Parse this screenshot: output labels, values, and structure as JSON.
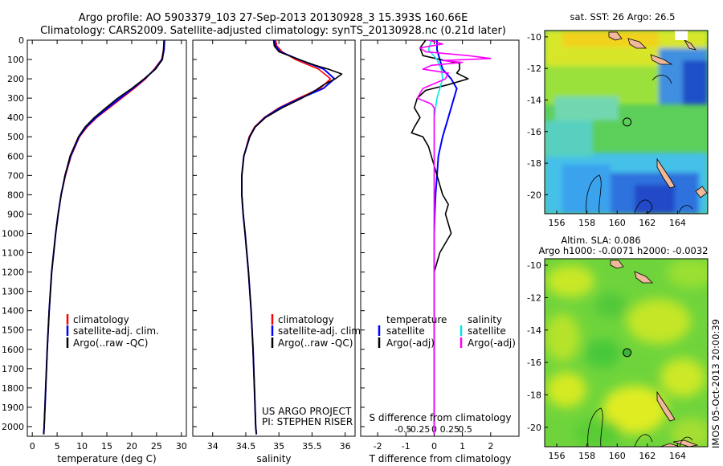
{
  "header": {
    "title_line1": "Argo profile: AO 5903379_103 27-Sep-2013 20130928_3 15.393S 160.66E",
    "title_line2": "Climatology: CARS2009. Satellite-adjusted climatology: synTS_20130928.nc (0.21d later)"
  },
  "stamp": "IMOS 05-Oct-2013 20:00:39",
  "colors": {
    "climatology": "#ff0000",
    "satellite_temp": "#0000ff",
    "argo": "#000000",
    "satellite_sal": "#00e5e5",
    "argo_sal": "#ff00ff",
    "land": "#f0b89a"
  },
  "chart_data": [
    {
      "type": "line",
      "name": "temperature-profile",
      "xlabel": "temperature (deg C)",
      "ylabel": "",
      "xlim": [
        -1,
        31
      ],
      "ylim": [
        2050,
        0
      ],
      "xticks": [
        0,
        5,
        10,
        15,
        20,
        25,
        30
      ],
      "yticks": [
        0,
        100,
        200,
        300,
        400,
        500,
        600,
        700,
        800,
        900,
        1000,
        1100,
        1200,
        1300,
        1400,
        1500,
        1600,
        1700,
        1800,
        1900,
        2000
      ],
      "legend": [
        {
          "label": "climatology",
          "color": "#ff0000"
        },
        {
          "label": "satellite-adj. clim.",
          "color": "#0000ff"
        },
        {
          "label": "Argo(..raw -QC)",
          "color": "#000000"
        }
      ],
      "series": [
        {
          "name": "climatology",
          "color": "#ff0000",
          "depth": [
            0,
            50,
            100,
            150,
            200,
            250,
            300,
            350,
            400,
            450,
            500,
            600,
            700,
            800,
            900,
            1000,
            1200,
            1400,
            1600,
            1800,
            2000,
            2040
          ],
          "values": [
            26.5,
            26.4,
            26.0,
            24.5,
            22.8,
            20.5,
            18.0,
            15.5,
            13.0,
            11.0,
            9.5,
            7.8,
            6.7,
            5.8,
            5.2,
            4.7,
            3.9,
            3.4,
            3.0,
            2.7,
            2.4,
            2.3
          ]
        },
        {
          "name": "satellite-adj. clim.",
          "color": "#0000ff",
          "depth": [
            0,
            50,
            100,
            150,
            200,
            250,
            300,
            350,
            400,
            450,
            500,
            600,
            700,
            800,
            900,
            1000,
            1200,
            1400,
            1600,
            1800,
            2000,
            2040
          ],
          "values": [
            26.6,
            26.5,
            26.1,
            24.7,
            22.6,
            20.2,
            17.7,
            15.2,
            12.8,
            10.8,
            9.4,
            7.7,
            6.6,
            5.8,
            5.2,
            4.7,
            3.9,
            3.4,
            3.0,
            2.7,
            2.4,
            2.3
          ]
        },
        {
          "name": "Argo(..raw -QC)",
          "color": "#000000",
          "depth": [
            0,
            50,
            100,
            150,
            200,
            250,
            300,
            350,
            400,
            450,
            500,
            600,
            700,
            800,
            900,
            1000,
            1200,
            1400,
            1600,
            1800,
            2000,
            2040
          ],
          "values": [
            26.5,
            26.4,
            26.2,
            24.8,
            22.5,
            20.0,
            17.2,
            14.8,
            12.5,
            10.6,
            9.3,
            7.6,
            6.6,
            5.8,
            5.2,
            4.7,
            3.9,
            3.4,
            3.0,
            2.7,
            2.4,
            2.3
          ]
        }
      ]
    },
    {
      "type": "line",
      "name": "salinity-profile",
      "xlabel": "salinity",
      "xlim": [
        33.7,
        36.15
      ],
      "ylim": [
        2050,
        0
      ],
      "xticks": [
        34,
        34.5,
        35,
        35.5,
        36
      ],
      "legend": [
        {
          "label": "climatology",
          "color": "#ff0000"
        },
        {
          "label": "satellite-adj. clim.",
          "color": "#0000ff"
        },
        {
          "label": "Argo(..raw -QC)",
          "color": "#000000"
        }
      ],
      "annotation": [
        "US ARGO PROJECT",
        "PI: STEPHEN RISER"
      ],
      "series": [
        {
          "name": "climatology",
          "color": "#ff0000",
          "depth": [
            0,
            30,
            60,
            100,
            150,
            200,
            250,
            300,
            350,
            400,
            450,
            500,
            600,
            700,
            800,
            900,
            1000,
            1200,
            1400,
            1600,
            1800,
            2000,
            2040
          ],
          "values": [
            34.95,
            34.97,
            35.05,
            35.25,
            35.6,
            35.78,
            35.62,
            35.3,
            35.0,
            34.78,
            34.63,
            34.55,
            34.47,
            34.44,
            34.44,
            34.46,
            34.49,
            34.54,
            34.58,
            34.61,
            34.63,
            34.65,
            34.66
          ]
        },
        {
          "name": "satellite-adj. clim.",
          "color": "#0000ff",
          "depth": [
            0,
            30,
            60,
            100,
            150,
            200,
            250,
            300,
            350,
            400,
            450,
            500,
            600,
            700,
            800,
            900,
            1000,
            1200,
            1400,
            1600,
            1800,
            2000,
            2040
          ],
          "values": [
            34.93,
            34.95,
            35.02,
            35.3,
            35.68,
            35.84,
            35.67,
            35.33,
            35.02,
            34.79,
            34.64,
            34.56,
            34.47,
            34.44,
            34.44,
            34.46,
            34.49,
            34.54,
            34.58,
            34.61,
            34.63,
            34.65,
            34.66
          ]
        },
        {
          "name": "Argo(..raw -QC)",
          "color": "#000000",
          "depth": [
            0,
            30,
            60,
            100,
            130,
            150,
            175,
            200,
            230,
            260,
            300,
            350,
            400,
            450,
            500,
            600,
            700,
            800,
            900,
            1000,
            1200,
            1400,
            1600,
            1800,
            2000,
            2040
          ],
          "values": [
            34.92,
            34.93,
            35.0,
            35.3,
            35.55,
            35.75,
            35.95,
            35.85,
            35.68,
            35.55,
            35.35,
            35.05,
            34.8,
            34.64,
            34.56,
            34.47,
            34.44,
            34.44,
            34.46,
            34.49,
            34.54,
            34.58,
            34.61,
            34.63,
            34.65,
            34.66
          ]
        }
      ]
    },
    {
      "type": "line",
      "name": "difference-profile",
      "xlabel": "T difference from climatology",
      "xlabel2": "S difference from climatology",
      "xlim": [
        -2.6,
        3.0
      ],
      "ylim": [
        2050,
        0
      ],
      "xticks": [
        -2,
        -1,
        0,
        1,
        2
      ],
      "xticks_s": [
        -0.5,
        -0.25,
        0,
        0.25,
        0.5
      ],
      "legend_temperature": {
        "title": "temperature",
        "items": [
          {
            "label": "satellite",
            "color": "#0000ff"
          },
          {
            "label": "Argo(-adj)",
            "color": "#000000"
          }
        ]
      },
      "legend_salinity": {
        "title": "salinity",
        "items": [
          {
            "label": "satellite",
            "color": "#00e5e5"
          },
          {
            "label": "Argo(-adj)",
            "color": "#ff00ff"
          }
        ]
      },
      "series": [
        {
          "name": "temperature satellite",
          "color": "#0000ff",
          "depth": [
            0,
            50,
            100,
            150,
            200,
            250,
            300,
            400,
            500,
            600,
            700,
            800,
            900,
            1000,
            1500,
            2040
          ],
          "values": [
            0.1,
            0.1,
            0.2,
            0.3,
            0.6,
            0.8,
            0.7,
            0.5,
            0.3,
            0.15,
            0.1,
            0.05,
            0.02,
            0.0,
            0.0,
            0.0
          ]
        },
        {
          "name": "temperature Argo(-adj)",
          "color": "#000000",
          "depth": [
            0,
            40,
            80,
            100,
            120,
            150,
            170,
            200,
            230,
            260,
            300,
            350,
            400,
            450,
            480,
            500,
            550,
            600,
            650,
            700,
            750,
            800,
            850,
            900,
            950,
            1000,
            1050,
            1100,
            1200,
            1500,
            2040
          ],
          "values": [
            -0.3,
            -0.5,
            -0.4,
            0.2,
            0.9,
            0.9,
            0.8,
            1.2,
            0.5,
            -0.3,
            -0.6,
            -0.7,
            -0.5,
            -0.7,
            -0.8,
            -0.4,
            -0.2,
            -0.1,
            0.0,
            0.1,
            0.2,
            0.3,
            0.5,
            0.4,
            0.5,
            0.6,
            0.4,
            0.2,
            0.0,
            0.0,
            0.0
          ]
        },
        {
          "name": "salinity satellite",
          "color": "#00e5e5",
          "depth": [
            0,
            50,
            100,
            150,
            200,
            250,
            300,
            350,
            400,
            450,
            500,
            600,
            800,
            1000,
            1500,
            2040
          ],
          "values": [
            -0.1,
            -0.2,
            0.1,
            0.25,
            0.3,
            0.2,
            0.1,
            0.05,
            0.0,
            0.0,
            0.0,
            0.0,
            0.0,
            0.0,
            0.0,
            0.0
          ]
        },
        {
          "name": "salinity Argo(-adj)",
          "color": "#ff00ff",
          "depth": [
            0,
            20,
            40,
            60,
            80,
            95,
            105,
            115,
            130,
            150,
            170,
            200,
            250,
            300,
            330,
            350,
            400,
            500,
            2040
          ],
          "values": [
            -0.2,
            0.3,
            -0.5,
            -0.3,
            1.2,
            2.0,
            0.3,
            1.0,
            -0.1,
            -0.4,
            0.5,
            0.4,
            -0.4,
            -0.6,
            -0.1,
            0.0,
            0.0,
            0.0,
            0.0
          ]
        }
      ]
    },
    {
      "type": "heatmap",
      "name": "sst-map",
      "title": "sat. SST: 26 Argo: 26.5",
      "xticks": [
        156,
        158,
        160,
        162,
        164
      ],
      "yticks": [
        -10,
        -12,
        -14,
        -16,
        -18,
        -20
      ],
      "xlim": [
        155.2,
        166.0
      ],
      "ylim": [
        -21.2,
        -9.6
      ],
      "marker": {
        "lon": 160.66,
        "lat": -15.393
      }
    },
    {
      "type": "heatmap",
      "name": "sla-map",
      "title": "Altim. SLA: 0.086",
      "subtitle": "Argo h1000: -0.0071 h2000: -0.0032",
      "xticks": [
        156,
        158,
        160,
        162,
        164
      ],
      "yticks": [
        -10,
        -12,
        -14,
        -16,
        -18,
        -20
      ],
      "xlim": [
        155.2,
        166.0
      ],
      "ylim": [
        -21.2,
        -9.6
      ],
      "marker": {
        "lon": 160.66,
        "lat": -15.393
      }
    }
  ]
}
